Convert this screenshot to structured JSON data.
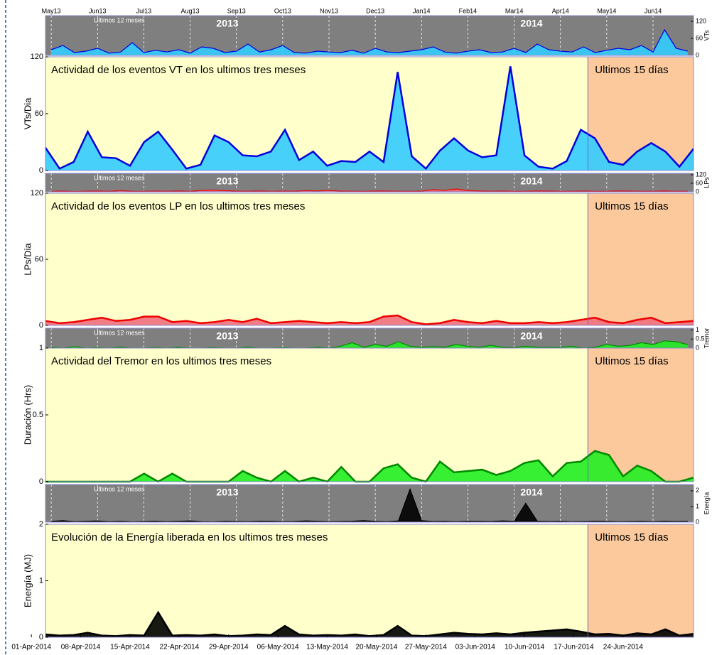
{
  "chart_data": [
    {
      "type": "area",
      "title": "Actividad de los eventos VT en los ultimos tres meses",
      "ylabel": "VTs/Dia",
      "highlight_label": "Ultimos 15 días",
      "highlight_start": "19-Jun-2014",
      "xlim": [
        "03-Apr-2014",
        "04-Jul-2014"
      ],
      "x": [
        "03-Apr-2014",
        "05-Apr-2014",
        "07-Apr-2014",
        "09-Apr-2014",
        "11-Apr-2014",
        "13-Apr-2014",
        "15-Apr-2014",
        "17-Apr-2014",
        "19-Apr-2014",
        "21-Apr-2014",
        "23-Apr-2014",
        "25-Apr-2014",
        "27-Apr-2014",
        "29-Apr-2014",
        "01-May-2014",
        "03-May-2014",
        "05-May-2014",
        "07-May-2014",
        "09-May-2014",
        "11-May-2014",
        "13-May-2014",
        "15-May-2014",
        "17-May-2014",
        "19-May-2014",
        "21-May-2014",
        "23-May-2014",
        "25-May-2014",
        "27-May-2014",
        "29-May-2014",
        "31-May-2014",
        "02-Jun-2014",
        "04-Jun-2014",
        "06-Jun-2014",
        "08-Jun-2014",
        "10-Jun-2014",
        "12-Jun-2014",
        "14-Jun-2014",
        "16-Jun-2014",
        "18-Jun-2014",
        "20-Jun-2014",
        "22-Jun-2014",
        "24-Jun-2014",
        "26-Jun-2014",
        "28-Jun-2014",
        "30-Jun-2014",
        "02-Jul-2014",
        "04-Jul-2014"
      ],
      "ylim": [
        0,
        120
      ],
      "yticks": [
        0,
        60,
        120
      ],
      "color": "#33ccff",
      "line_color": "#0000dd",
      "values": [
        24,
        2,
        9,
        41,
        14,
        13,
        5,
        30,
        41,
        22,
        2,
        6,
        37,
        30,
        16,
        15,
        20,
        43,
        11,
        20,
        5,
        10,
        9,
        20,
        9,
        104,
        15,
        2,
        21,
        34,
        21,
        14,
        16,
        110,
        16,
        4,
        2,
        10,
        43,
        34,
        9,
        6,
        20,
        29,
        20,
        4,
        23
      ],
      "overview": {
        "title": "Ultimos 12 meses",
        "years": [
          "2013",
          "2014"
        ],
        "ylabel": "VTs",
        "ylim": [
          0,
          140
        ],
        "yticks": [
          0,
          60,
          120
        ],
        "categories": [
          "May13",
          null,
          null,
          null,
          "Jun13",
          null,
          null,
          null,
          "Jul13",
          null,
          null,
          null,
          "Aug13",
          null,
          null,
          null,
          "Sep13",
          null,
          null,
          null,
          "Oct13",
          null,
          null,
          null,
          "Nov13",
          null,
          null,
          null,
          "Dec13",
          null,
          null,
          null,
          "Jan14",
          null,
          null,
          null,
          "Feb14",
          null,
          null,
          null,
          "Mar14",
          null,
          null,
          null,
          "Apr14",
          null,
          null,
          null,
          "May14",
          null,
          null,
          null,
          "Jun14",
          null,
          null,
          null
        ],
        "values": [
          20,
          35,
          10,
          15,
          25,
          8,
          12,
          45,
          10,
          18,
          12,
          20,
          8,
          30,
          25,
          10,
          15,
          40,
          12,
          20,
          35,
          10,
          8,
          15,
          12,
          10,
          18,
          8,
          25,
          12,
          10,
          15,
          20,
          30,
          12,
          8,
          15,
          20,
          10,
          12,
          25,
          10,
          40,
          20,
          15,
          12,
          30,
          10,
          18,
          25,
          20,
          35,
          12,
          90,
          25,
          15
        ]
      }
    },
    {
      "type": "area",
      "title": "Actividad de los eventos LP en los ultimos tres meses",
      "ylabel": "LPs/Dia",
      "highlight_label": "Ultimos 15 días",
      "highlight_start": "19-Jun-2014",
      "ylim": [
        0,
        120
      ],
      "yticks": [
        0,
        60,
        120
      ],
      "color": "#f07080",
      "line_color": "#ee0000",
      "values": [
        4,
        2,
        3,
        5,
        7,
        4,
        5,
        8,
        8,
        3,
        4,
        2,
        3,
        5,
        3,
        6,
        2,
        3,
        4,
        3,
        2,
        3,
        2,
        3,
        8,
        9,
        3,
        1,
        2,
        5,
        3,
        2,
        4,
        2,
        2,
        3,
        2,
        3,
        5,
        7,
        3,
        2,
        5,
        7,
        2,
        3,
        4
      ],
      "overview": {
        "title": "Ultimos 12 meses",
        "years": [
          "2013",
          "2014"
        ],
        "ylabel": "LPs",
        "ylim": [
          0,
          130
        ],
        "yticks": [
          0,
          60,
          120
        ],
        "values": [
          3,
          5,
          2,
          4,
          6,
          3,
          8,
          4,
          3,
          5,
          4,
          6,
          3,
          10,
          12,
          8,
          5,
          4,
          6,
          3,
          5,
          4,
          8,
          6,
          10,
          5,
          4,
          3,
          6,
          5,
          4,
          3,
          5,
          15,
          10,
          20,
          8,
          6,
          4,
          5,
          3,
          4,
          6,
          5,
          3,
          4,
          5,
          3,
          4,
          6,
          5,
          3,
          4,
          6,
          3,
          4
        ]
      }
    },
    {
      "type": "area",
      "title": "Actividad del Tremor en los ultimos tres meses",
      "ylabel": "Duración (Hrs)",
      "highlight_label": "Ultimos 15 días",
      "highlight_start": "19-Jun-2014",
      "ylim": [
        0,
        1
      ],
      "yticks": [
        0,
        0.5,
        1
      ],
      "color": "#22ee22",
      "line_color": "#008800",
      "values": [
        0,
        0,
        0,
        0,
        0,
        0,
        0,
        0.06,
        0,
        0.06,
        0,
        0,
        0,
        0,
        0.08,
        0.03,
        0,
        0.08,
        0,
        0.03,
        0,
        0.11,
        0,
        0,
        0.1,
        0.13,
        0.03,
        0,
        0.15,
        0.07,
        0.08,
        0.09,
        0.05,
        0.08,
        0.14,
        0.16,
        0.04,
        0.14,
        0.15,
        0.23,
        0.2,
        0.04,
        0.12,
        0.08,
        0,
        0,
        0.03
      ],
      "overview": {
        "title": "Ultimos 12 meses",
        "years": [
          "2013",
          "2014"
        ],
        "ylabel": "Tremor",
        "ylim": [
          0,
          1.1
        ],
        "yticks": [
          0,
          0.5,
          1
        ],
        "values": [
          0.05,
          0,
          0.08,
          0,
          0.03,
          0,
          0.05,
          0,
          0,
          0.03,
          0,
          0.05,
          0,
          0,
          0.03,
          0,
          0,
          0.05,
          0,
          0,
          0.03,
          0,
          0,
          0.05,
          0,
          0.1,
          0.3,
          0.05,
          0.2,
          0.1,
          0.35,
          0.1,
          0.05,
          0.08,
          0.05,
          0.2,
          0.1,
          0.05,
          0.15,
          0.05,
          0.03,
          0.1,
          0.05,
          0.03,
          0.05,
          0.1,
          0,
          0.05,
          0.2,
          0.1,
          0.15,
          0.3,
          0.2,
          0.4,
          0.35,
          0.2
        ]
      }
    },
    {
      "type": "area",
      "title": "Evolución de la Energía liberada en los ultimos tres meses",
      "ylabel": "Energía (MJ)",
      "highlight_label": "Ultimos 15 días",
      "highlight_start": "19-Jun-2014",
      "ylim": [
        0,
        2
      ],
      "yticks": [
        0,
        1,
        2
      ],
      "color": "#000000",
      "line_color": "#000000",
      "xticks": [
        "01-Apr-2014",
        "08-Apr-2014",
        "15-Apr-2014",
        "22-Apr-2014",
        "29-Apr-2014",
        "06-May-2014",
        "13-May-2014",
        "20-May-2014",
        "27-May-2014",
        "03-Jun-2014",
        "10-Jun-2014",
        "17-Jun-2014",
        "24-Jun-2014"
      ],
      "values": [
        0.05,
        0.03,
        0.04,
        0.08,
        0.03,
        0.02,
        0.04,
        0.03,
        0.44,
        0.03,
        0.04,
        0.03,
        0.05,
        0.02,
        0.03,
        0.05,
        0.04,
        0.2,
        0.05,
        0.03,
        0.04,
        0.03,
        0.05,
        0.02,
        0.04,
        0.2,
        0.03,
        0.02,
        0.05,
        0.08,
        0.06,
        0.05,
        0.07,
        0.05,
        0.08,
        0.1,
        0.12,
        0.14,
        0.1,
        0.05,
        0.06,
        0.03,
        0.07,
        0.05,
        0.14,
        0.03,
        0.06
      ],
      "overview": {
        "title": "Ultimos 12 meses",
        "years": [
          "2013",
          "2014"
        ],
        "ylabel": "Energía",
        "ylim": [
          0,
          2.4
        ],
        "yticks": [
          0,
          1,
          2
        ],
        "values": [
          0.05,
          0.1,
          0.03,
          0.05,
          0.08,
          0.03,
          0.05,
          0.02,
          0.04,
          0.06,
          0.03,
          0.05,
          0.08,
          0.03,
          0.02,
          0.05,
          0.04,
          0.03,
          0.06,
          0.05,
          0.03,
          0.04,
          0.08,
          0.05,
          0.03,
          0.04,
          0.06,
          0.1,
          0.05,
          0.03,
          0.08,
          2.1,
          0.1,
          0.04,
          0.05,
          0.03,
          0.06,
          0.05,
          0.04,
          0.08,
          0.05,
          1.2,
          0.06,
          0.04,
          0.05,
          0.03,
          0.04,
          0.06,
          0.05,
          0.03,
          0.04,
          0.05,
          0.03,
          0.06,
          0.04,
          0.05
        ]
      }
    }
  ]
}
